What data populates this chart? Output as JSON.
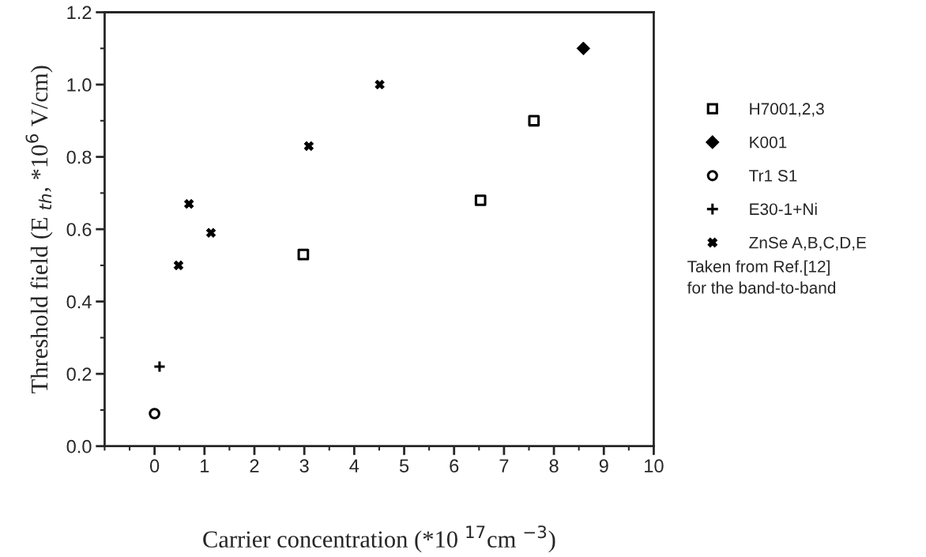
{
  "chart_data": {
    "type": "scatter",
    "xlabel": "Carrier concentration (*10 $^{17}$cm $^{−3}$)",
    "ylabel": "Threshold field (E $_{th}$, *10$^{6}$ V/cm)",
    "xlim": [
      -1,
      10
    ],
    "xticks": [
      0,
      1,
      2,
      3,
      4,
      5,
      6,
      7,
      8,
      9,
      10
    ],
    "ylim": [
      0,
      1.2
    ],
    "yticks": [
      {
        "value": 0,
        "label": "0.0"
      },
      {
        "value": 0.2,
        "label": "0.2"
      },
      {
        "value": 0.4,
        "label": "0.4"
      },
      {
        "value": 0.6,
        "label": "0.6"
      },
      {
        "value": 0.8,
        "label": "0.8"
      },
      {
        "value": 1.0,
        "label": "1.0"
      },
      {
        "value": 1.2,
        "label": "1.2"
      }
    ],
    "grid": false,
    "legend": "right",
    "series": [
      {
        "name": "H7001,2,3",
        "color": "#000000",
        "marker": "square",
        "x": [
          2.98,
          6.53,
          7.6
        ],
        "values": [
          0.53,
          0.68,
          0.9
        ]
      },
      {
        "name": "K001",
        "color": "#000000",
        "marker": "diamond",
        "x": [
          8.59
        ],
        "values": [
          1.1
        ]
      },
      {
        "name": "Tr1 S1",
        "color": "#000000",
        "marker": "circle",
        "x": [
          0
        ],
        "values": [
          0.09
        ]
      },
      {
        "name": "E30-1+Ni",
        "color": "#000000",
        "x": [
          0.1
        ],
        "values": [
          0.22
        ]
      },
      {
        "name": "ZnSe A,B,C,D,E",
        "color": "#000000",
        "marker": "cross",
        "x": [
          0.48,
          0.69,
          1.13,
          3.09,
          4.51
        ],
        "values": [
          0.5,
          0.67,
          0.59,
          0.83,
          1.0
        ]
      }
    ],
    "annotations": [
      "Taken from Ref.[12]\nfor the band-to-band"
    ]
  }
}
